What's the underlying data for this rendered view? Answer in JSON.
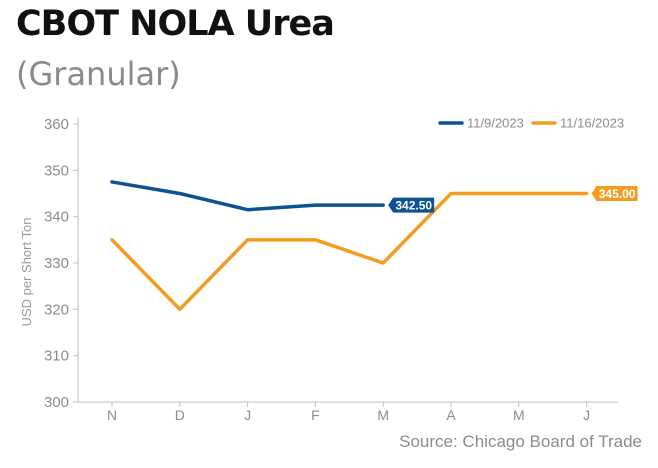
{
  "title": "CBOT NOLA Urea",
  "subtitle": "(Granular)",
  "source": "Source: Chicago Board of Trade",
  "colors": {
    "series_1": "#0b5394",
    "series_2": "#f39c1f",
    "axis": "#bfbfbf",
    "tick_text": "#8c8c8c"
  },
  "chart_data": {
    "type": "line",
    "ylabel": "USD per Short Ton",
    "xlabel": "",
    "categories": [
      "N",
      "D",
      "J",
      "F",
      "M",
      "A",
      "M",
      "J"
    ],
    "yticks": [
      300,
      310,
      320,
      330,
      340,
      350,
      360
    ],
    "ylim": [
      300,
      360
    ],
    "grid": false,
    "legend_position": "top-right",
    "series": [
      {
        "name": "11/9/2023",
        "color": "#0b5394",
        "values": [
          347.5,
          345,
          341.5,
          342.5,
          342.5,
          null,
          null,
          null
        ],
        "end_label": "342.50"
      },
      {
        "name": "11/16/2023",
        "color": "#f39c1f",
        "values": [
          335,
          320,
          335,
          335,
          330,
          345,
          345,
          345
        ],
        "end_label": "345.00"
      }
    ]
  }
}
